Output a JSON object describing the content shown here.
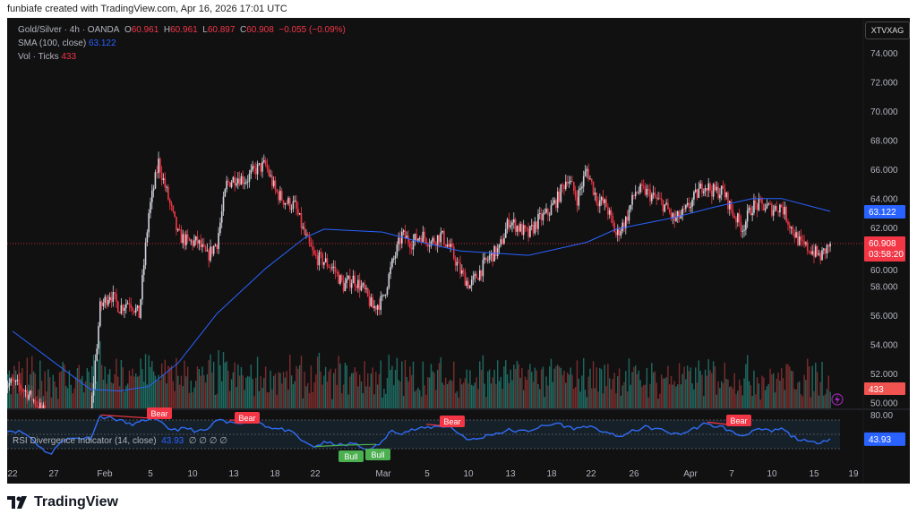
{
  "credit": "funbiafe created with TradingView.com, Apr 16, 2026 17:01 UTC",
  "symbol_badge": "XTVXAG",
  "legend": {
    "title": "Gold/Silver · 4h · OANDA",
    "o_label": "O",
    "o": "60.961",
    "h_label": "H",
    "h": "60.961",
    "l_label": "L",
    "l": "60.897",
    "c_label": "C",
    "c": "60.908",
    "change": "−0.055 (−0.09%)",
    "sma_label": "SMA (100, close)",
    "sma_value": "63.122",
    "vol_label": "Vol · Ticks",
    "vol_value": "433"
  },
  "price_axis": {
    "ticks": [
      "74.000",
      "72.000",
      "70.000",
      "68.000",
      "66.000",
      "64.000",
      "62.000",
      "60.000",
      "58.000",
      "56.000",
      "54.000",
      "52.000",
      "50.000"
    ],
    "sma_tag": "63.122",
    "last_price_tag": "60.908",
    "countdown": "03:58:20",
    "volume_tag": "433"
  },
  "rsi": {
    "title": "RSI Divergence Indicator (14, close)",
    "value": "43.93",
    "na_marks": "∅ ∅ ∅ ∅",
    "axis_top": "80.00",
    "bear_label": "Bear",
    "bull_label": "Bull"
  },
  "time_axis": [
    "22",
    "27",
    "Feb",
    "5",
    "10",
    "13",
    "18",
    "22",
    "Mar",
    "5",
    "10",
    "13",
    "18",
    "22",
    "26",
    "Apr",
    "7",
    "10",
    "15",
    "19"
  ],
  "brand": "TradingView",
  "colors": {
    "up": "#d1d4dc",
    "down": "#f23645",
    "vol_up": "#1f6b62",
    "vol_down": "#7c2d2d",
    "sma": "#2962ff",
    "rsi": "#2f6cf5",
    "bull": "#4caf50"
  },
  "chart_data": {
    "type": "candlestick",
    "x_start": "2026-01-22",
    "daily_closes": [
      51.3,
      51,
      50.3,
      49.5,
      48.8,
      48.5,
      48.3,
      48.6,
      49,
      56.5,
      57.5,
      56.5,
      57,
      56,
      63,
      66.5,
      64,
      61.5,
      61,
      61,
      60,
      61,
      65,
      65.5,
      65.3,
      66,
      66.3,
      64.5,
      63.8,
      63.5,
      61.5,
      60,
      59.7,
      59.2,
      58,
      58.5,
      57.8,
      56.5,
      57,
      59.5,
      61.5,
      61,
      61.5,
      61,
      61.5,
      60.5,
      59,
      58,
      59,
      60,
      60.5,
      62.5,
      62,
      61.5,
      62.5,
      63,
      64,
      65.5,
      64,
      66,
      64,
      63.5,
      61.5,
      62.5,
      64.5,
      64.5,
      64,
      63.5,
      62.5,
      63,
      64,
      65,
      64.5,
      64.5,
      63,
      62,
      63.5,
      63.5,
      63.3,
      63.5,
      62,
      60.8,
      60.5,
      60,
      60.908
    ],
    "sma100_daily": [
      [
        0,
        54.9
      ],
      [
        8,
        50.9
      ],
      [
        11,
        50.8
      ],
      [
        14,
        51.1
      ],
      [
        17,
        52.7
      ],
      [
        21,
        56.1
      ],
      [
        26,
        59.2
      ],
      [
        30,
        61.3
      ],
      [
        32,
        61.9
      ],
      [
        38,
        61.7
      ],
      [
        42,
        61
      ],
      [
        46,
        60.4
      ],
      [
        53,
        60.1
      ],
      [
        59,
        61
      ],
      [
        62,
        61.9
      ],
      [
        68,
        62.7
      ],
      [
        72,
        63.4
      ],
      [
        76,
        64
      ],
      [
        79,
        64
      ],
      [
        84,
        63.122
      ]
    ],
    "rsi_daily": [
      55,
      53,
      44,
      30,
      22,
      42,
      44,
      45,
      45,
      75,
      73,
      70,
      64,
      66,
      72,
      68,
      58,
      57,
      58,
      54,
      56,
      70,
      66,
      67,
      68,
      70,
      62,
      58,
      56,
      50,
      38,
      33,
      38,
      37,
      34,
      38,
      30,
      30,
      40,
      56,
      52,
      56,
      58,
      60,
      62,
      60,
      50,
      42,
      44,
      50,
      52,
      56,
      54,
      55,
      60,
      62,
      66,
      60,
      58,
      62,
      56,
      54,
      46,
      50,
      56,
      60,
      58,
      55,
      50,
      52,
      58,
      64,
      62,
      60,
      52,
      48,
      55,
      56,
      54,
      58,
      48,
      42,
      38,
      40,
      43.93
    ],
    "price_range": [
      50,
      74.5
    ],
    "rsi_range": [
      0,
      80
    ],
    "divergences": [
      {
        "type": "Bear",
        "from": "Feb 1",
        "to": "Feb 5"
      },
      {
        "type": "Bear",
        "from": "Feb 12",
        "to": "Feb 13"
      },
      {
        "type": "Bull",
        "from": "Feb 22",
        "to": "Feb 25"
      },
      {
        "type": "Bull",
        "from": "Feb 25",
        "to": "Feb 27"
      },
      {
        "type": "Bear",
        "from": "Mar 4",
        "to": "Mar 7"
      },
      {
        "type": "Bear",
        "from": "Apr 5",
        "to": "Apr 7"
      }
    ],
    "last_volume": 433
  }
}
